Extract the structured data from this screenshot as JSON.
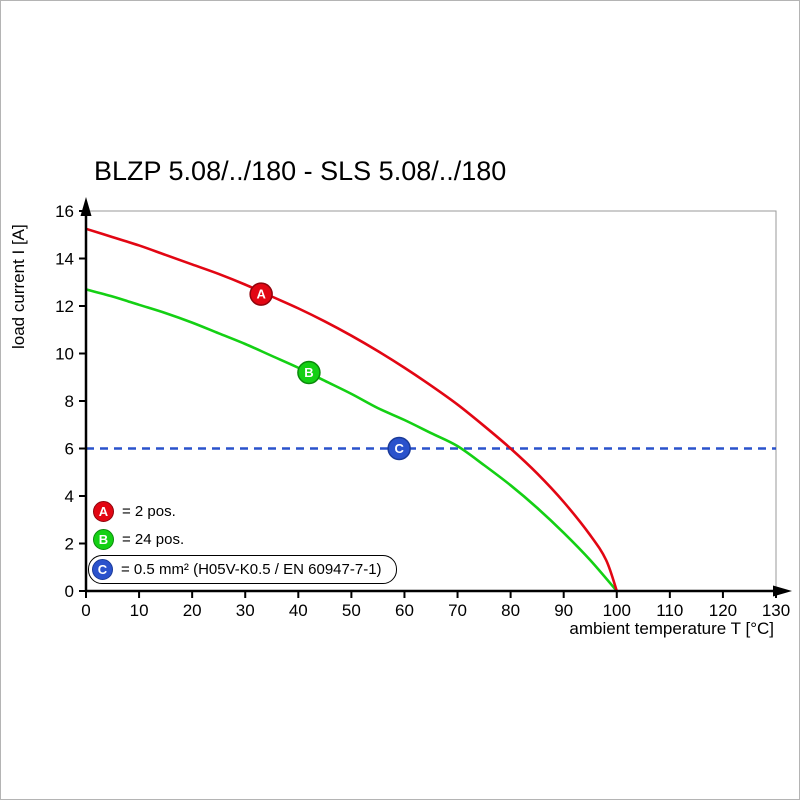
{
  "chart_data": {
    "type": "line",
    "title": "BLZP 5.08/../180 - SLS 5.08/../180",
    "xlabel": "ambient temperature T [°C]",
    "ylabel": "load current I [A]",
    "xlim": [
      0,
      130
    ],
    "ylim": [
      0,
      16
    ],
    "x_ticks": [
      0,
      10,
      20,
      30,
      40,
      50,
      60,
      70,
      80,
      90,
      100,
      110,
      120,
      130
    ],
    "y_ticks": [
      0,
      2,
      4,
      6,
      8,
      10,
      12,
      14,
      16
    ],
    "grid": false,
    "legend_position": "lower-left",
    "axis_color": "#000000",
    "frame_color": "#9a9a9a",
    "series": [
      {
        "name": "A",
        "color": "#e20613",
        "edge_color": "#8f040c",
        "style": "solid",
        "marker": {
          "x": 33,
          "y": 12.5,
          "label": "A"
        },
        "points": [
          [
            0,
            15.25
          ],
          [
            5,
            14.9
          ],
          [
            10,
            14.55
          ],
          [
            15,
            14.15
          ],
          [
            20,
            13.75
          ],
          [
            25,
            13.35
          ],
          [
            30,
            12.9
          ],
          [
            35,
            12.4
          ],
          [
            40,
            11.9
          ],
          [
            45,
            11.35
          ],
          [
            50,
            10.75
          ],
          [
            55,
            10.1
          ],
          [
            60,
            9.4
          ],
          [
            65,
            8.65
          ],
          [
            70,
            7.85
          ],
          [
            75,
            6.95
          ],
          [
            80,
            6.0
          ],
          [
            85,
            4.95
          ],
          [
            90,
            3.75
          ],
          [
            95,
            2.35
          ],
          [
            98,
            1.3
          ],
          [
            100,
            0
          ]
        ]
      },
      {
        "name": "B",
        "color": "#14d014",
        "edge_color": "#0b8a0b",
        "style": "solid",
        "marker": {
          "x": 42,
          "y": 9.2,
          "label": "B"
        },
        "points": [
          [
            0,
            12.7
          ],
          [
            5,
            12.4
          ],
          [
            10,
            12.05
          ],
          [
            15,
            11.7
          ],
          [
            20,
            11.3
          ],
          [
            25,
            10.85
          ],
          [
            30,
            10.4
          ],
          [
            35,
            9.9
          ],
          [
            40,
            9.4
          ],
          [
            45,
            8.85
          ],
          [
            50,
            8.3
          ],
          [
            55,
            7.7
          ],
          [
            60,
            7.2
          ],
          [
            65,
            6.65
          ],
          [
            70,
            6.1
          ],
          [
            75,
            5.3
          ],
          [
            80,
            4.45
          ],
          [
            85,
            3.5
          ],
          [
            90,
            2.45
          ],
          [
            95,
            1.3
          ],
          [
            100,
            0
          ]
        ]
      },
      {
        "name": "C",
        "color": "#2a52cc",
        "edge_color": "#1a3a99",
        "style": "dashed",
        "marker": {
          "x": 59,
          "y": 6,
          "label": "C"
        },
        "points": [
          [
            0,
            6
          ],
          [
            130,
            6
          ]
        ]
      }
    ],
    "legend": [
      {
        "label": "A",
        "color": "#e20613",
        "edge_color": "#8f040c",
        "text": "= 2 pos."
      },
      {
        "label": "B",
        "color": "#14d014",
        "edge_color": "#0b8a0b",
        "text": "= 24 pos."
      },
      {
        "label": "C",
        "color": "#2a52cc",
        "edge_color": "#1a3a99",
        "text": "= 0.5 mm² (H05V-K0.5 / EN 60947-7-1)",
        "boxed": true
      }
    ]
  }
}
